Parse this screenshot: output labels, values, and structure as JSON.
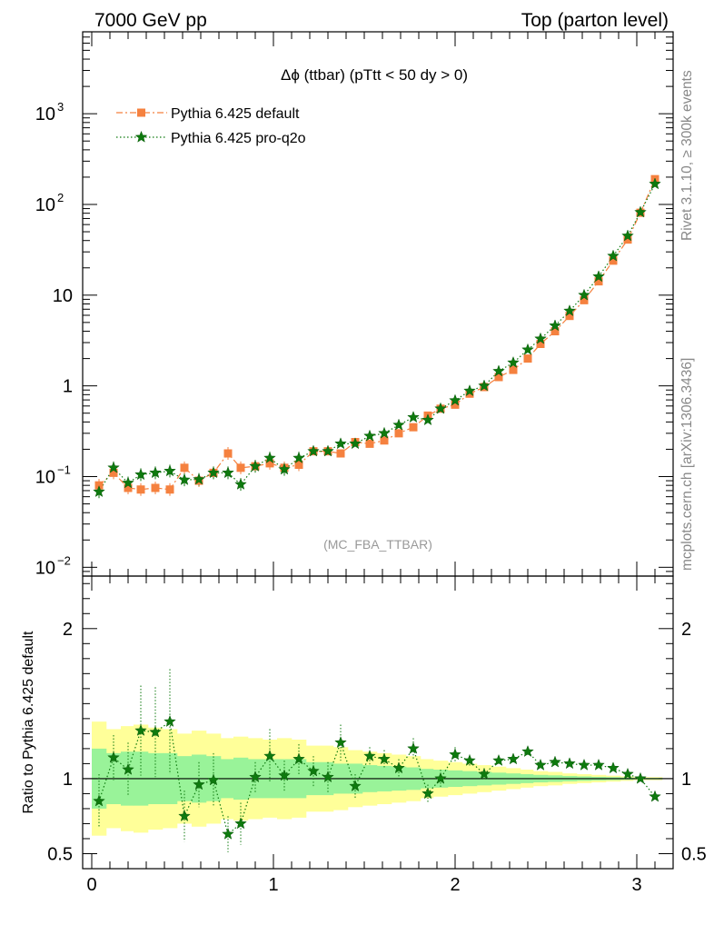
{
  "header": {
    "left": "7000 GeV pp",
    "right": "Top (parton level)"
  },
  "side_labels": {
    "rivet": "Rivet 3.1.10, ≥ 300k events",
    "mcplots": "mcplots.cern.ch [arXiv:1306.3436]"
  },
  "chart_data": [
    {
      "type": "line",
      "title": "Δϕ (ttbar) (pTtt < 50 dy > 0)",
      "watermark": "(MC_FBA_TTBAR)",
      "y_scale": "log",
      "ylim": [
        0.008,
        8000
      ],
      "xlim": [
        -0.05,
        3.2
      ],
      "y_ticks": [
        {
          "value": 0.01,
          "base": "10",
          "exp": "−2"
        },
        {
          "value": 0.1,
          "base": "10",
          "exp": "−1"
        },
        {
          "value": 1,
          "base": "1",
          "exp": ""
        },
        {
          "value": 10,
          "base": "10",
          "exp": ""
        },
        {
          "value": 100,
          "base": "10",
          "exp": "2"
        },
        {
          "value": 1000,
          "base": "10",
          "exp": "3"
        }
      ],
      "legend_position": "top-left",
      "series": [
        {
          "name": "Pythia 6.425 default",
          "color": "#f5813f",
          "marker": "square",
          "line_style": "dash-dot",
          "x": [
            0.04,
            0.12,
            0.2,
            0.27,
            0.35,
            0.43,
            0.51,
            0.59,
            0.67,
            0.75,
            0.82,
            0.9,
            0.98,
            1.06,
            1.14,
            1.22,
            1.3,
            1.37,
            1.45,
            1.53,
            1.61,
            1.69,
            1.77,
            1.85,
            1.92,
            2.0,
            2.08,
            2.16,
            2.24,
            2.32,
            2.4,
            2.47,
            2.55,
            2.63,
            2.71,
            2.79,
            2.87,
            2.95,
            3.02,
            3.1
          ],
          "y": [
            0.08,
            0.11,
            0.075,
            0.072,
            0.075,
            0.072,
            0.125,
            0.09,
            0.11,
            0.18,
            0.125,
            0.13,
            0.14,
            0.125,
            0.135,
            0.19,
            0.19,
            0.18,
            0.24,
            0.23,
            0.25,
            0.3,
            0.35,
            0.47,
            0.56,
            0.62,
            0.82,
            0.97,
            1.25,
            1.5,
            2.0,
            2.9,
            4.0,
            5.9,
            8.8,
            14.2,
            24,
            41,
            81,
            190
          ]
        },
        {
          "name": "Pythia 6.425 pro-q2o",
          "color": "#0e7a0e",
          "marker": "star",
          "line_style": "dotted",
          "x": [
            0.04,
            0.12,
            0.2,
            0.27,
            0.35,
            0.43,
            0.51,
            0.59,
            0.67,
            0.75,
            0.82,
            0.9,
            0.98,
            1.06,
            1.14,
            1.22,
            1.3,
            1.37,
            1.45,
            1.53,
            1.61,
            1.69,
            1.77,
            1.85,
            1.92,
            2.0,
            2.08,
            2.16,
            2.24,
            2.32,
            2.4,
            2.47,
            2.55,
            2.63,
            2.71,
            2.79,
            2.87,
            2.95,
            3.02,
            3.1
          ],
          "y": [
            0.068,
            0.125,
            0.085,
            0.105,
            0.11,
            0.115,
            0.092,
            0.093,
            0.11,
            0.11,
            0.082,
            0.13,
            0.16,
            0.12,
            0.16,
            0.19,
            0.19,
            0.23,
            0.23,
            0.28,
            0.3,
            0.37,
            0.45,
            0.42,
            0.56,
            0.69,
            0.88,
            1.0,
            1.45,
            1.8,
            2.5,
            3.3,
            4.6,
            6.7,
            10.0,
            16.0,
            27,
            45,
            82,
            168
          ]
        }
      ]
    },
    {
      "type": "line",
      "ylabel": "Ratio to Pythia 6.425 default",
      "ylim": [
        0.4,
        2.35
      ],
      "xlim": [
        -0.05,
        3.2
      ],
      "y_ticks": [
        0.5,
        1,
        2
      ],
      "x_ticks": [
        0,
        1,
        2,
        3
      ],
      "bands": {
        "x_edges": [
          0.0,
          0.08,
          0.16,
          0.23,
          0.31,
          0.39,
          0.47,
          0.55,
          0.63,
          0.71,
          0.78,
          0.86,
          0.94,
          1.02,
          1.1,
          1.18,
          1.26,
          1.33,
          1.41,
          1.49,
          1.57,
          1.65,
          1.73,
          1.81,
          1.88,
          1.96,
          2.04,
          2.12,
          2.2,
          2.28,
          2.36,
          2.43,
          2.51,
          2.59,
          2.67,
          2.75,
          2.83,
          2.91,
          2.98,
          3.06,
          3.14
        ],
        "yellow": [
          0.38,
          0.33,
          0.35,
          0.36,
          0.34,
          0.33,
          0.3,
          0.32,
          0.3,
          0.27,
          0.28,
          0.27,
          0.26,
          0.27,
          0.26,
          0.22,
          0.22,
          0.21,
          0.19,
          0.18,
          0.17,
          0.16,
          0.15,
          0.13,
          0.12,
          0.11,
          0.1,
          0.09,
          0.08,
          0.07,
          0.06,
          0.05,
          0.045,
          0.035,
          0.03,
          0.025,
          0.02,
          0.015,
          0.01,
          0.01
        ],
        "green": [
          0.2,
          0.17,
          0.18,
          0.18,
          0.17,
          0.17,
          0.15,
          0.16,
          0.15,
          0.13,
          0.14,
          0.13,
          0.13,
          0.13,
          0.13,
          0.11,
          0.11,
          0.1,
          0.1,
          0.09,
          0.085,
          0.08,
          0.075,
          0.065,
          0.06,
          0.055,
          0.05,
          0.045,
          0.04,
          0.035,
          0.03,
          0.025,
          0.022,
          0.018,
          0.015,
          0.012,
          0.01,
          0.008,
          0.005,
          0.005
        ],
        "yellow_color": "#ffff99",
        "green_color": "#99f399"
      },
      "series": [
        {
          "name": "Pythia 6.425 pro-q2o",
          "color": "#0e7a0e",
          "marker": "star",
          "line_style": "dotted",
          "x": [
            0.04,
            0.12,
            0.2,
            0.27,
            0.35,
            0.43,
            0.51,
            0.59,
            0.67,
            0.75,
            0.82,
            0.9,
            0.98,
            1.06,
            1.14,
            1.22,
            1.3,
            1.37,
            1.45,
            1.53,
            1.61,
            1.69,
            1.77,
            1.85,
            1.92,
            2.0,
            2.08,
            2.16,
            2.24,
            2.32,
            2.4,
            2.47,
            2.55,
            2.63,
            2.71,
            2.79,
            2.87,
            2.95,
            3.02,
            3.1
          ],
          "y": [
            0.85,
            1.14,
            1.06,
            1.32,
            1.31,
            1.38,
            0.75,
            0.96,
            0.99,
            0.63,
            0.7,
            1.01,
            1.15,
            1.02,
            1.13,
            1.05,
            1.01,
            1.24,
            0.95,
            1.15,
            1.13,
            1.07,
            1.2,
            0.9,
            1.0,
            1.16,
            1.12,
            1.03,
            1.12,
            1.13,
            1.18,
            1.09,
            1.11,
            1.1,
            1.09,
            1.09,
            1.07,
            1.03,
            1.0,
            0.88
          ],
          "err": [
            0.18,
            0.15,
            0.18,
            0.3,
            0.3,
            0.35,
            0.17,
            0.15,
            0.18,
            0.12,
            0.14,
            0.1,
            0.18,
            0.1,
            0.1,
            0.1,
            0.1,
            0.12,
            0.08,
            0.06,
            0.06,
            0.06,
            0.07,
            0.06,
            0.06,
            0.05,
            0.04,
            0.04,
            0.03,
            0.03,
            0.03,
            0.02,
            0.02,
            0.01,
            0.01,
            0.01,
            0.01,
            0.01,
            0.01,
            0.01
          ]
        }
      ]
    }
  ]
}
